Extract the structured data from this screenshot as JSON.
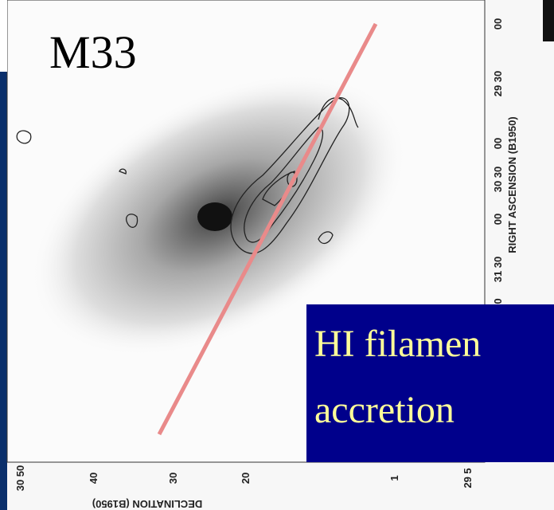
{
  "title": "M33",
  "overlay": {
    "lines": [
      "HI filamen",
      "accretion"
    ]
  },
  "axes": {
    "right_ticks": [
      "00",
      "29 30",
      "00",
      "30 30",
      "00",
      "31 30",
      "0"
    ],
    "right_label": "RIGHT ASCENSION (B1950)",
    "bottom_ticks": [
      "30 50",
      "40",
      "30",
      "20",
      "1",
      "29 5"
    ],
    "bottom_label": "DECLINATION (B1950)"
  }
}
